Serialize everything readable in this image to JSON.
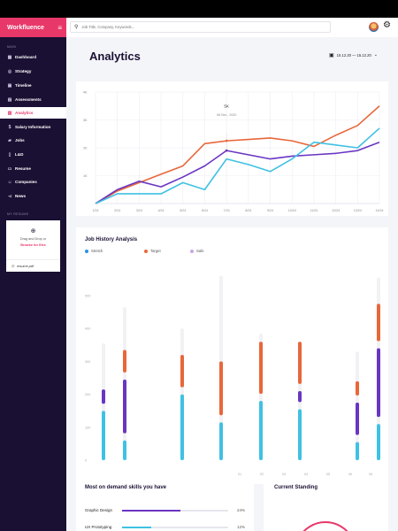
{
  "brand": {
    "name": "Workfluence",
    "menu_icon": "hamburger-icon"
  },
  "sidebar": {
    "section_main": "MAIN",
    "items": [
      {
        "label": "Dashboard",
        "icon": "grid-icon",
        "active": false
      },
      {
        "label": "Strategy",
        "icon": "target-icon",
        "active": false
      },
      {
        "label": "Timeline",
        "icon": "calendar-icon",
        "active": false
      },
      {
        "label": "Assessments",
        "icon": "clipboard-icon",
        "active": false
      },
      {
        "label": "Analytics",
        "icon": "chart-icon",
        "active": true
      },
      {
        "label": "Salary Information",
        "icon": "dollar-icon",
        "active": false
      },
      {
        "label": "Jobs",
        "icon": "briefcase-icon",
        "active": false
      },
      {
        "label": "L&D",
        "icon": "book-icon",
        "active": false
      },
      {
        "label": "Resume",
        "icon": "folder-icon",
        "active": false
      },
      {
        "label": "Companies",
        "icon": "people-icon",
        "active": false
      },
      {
        "label": "News",
        "icon": "megaphone-icon",
        "active": false
      }
    ],
    "section_resume": "MY RESUME",
    "resume": {
      "line1": "Drag and Drop or",
      "line2": "Browse for files",
      "file": "resume.pdf"
    }
  },
  "topbar": {
    "search_placeholder": "Job Title, Company, Keywords..."
  },
  "page": {
    "title": "Analytics",
    "date_range": "15.12.20 — 15.12.20"
  },
  "line_chart": {
    "y_ticks": [
      "4K",
      "3K",
      "2K",
      "1K"
    ],
    "x_ticks": [
      "1/24",
      "2/24",
      "3/24",
      "4/24",
      "5/24",
      "6/24",
      "7/24",
      "8/24",
      "9/24",
      "10/24",
      "11/24",
      "12/24",
      "13/24",
      "14/24"
    ],
    "tooltip": {
      "value": "5K",
      "date": "08 Dec , 2020"
    },
    "series": [
      {
        "color": "#e8673a",
        "values": [
          0.0,
          0.45,
          0.75,
          1.05,
          1.35,
          2.15,
          2.25,
          2.3,
          2.35,
          2.25,
          2.05,
          2.45,
          2.8,
          3.5
        ]
      },
      {
        "color": "#6a35c2",
        "values": [
          0.0,
          0.5,
          0.8,
          0.6,
          0.95,
          1.35,
          1.9,
          1.75,
          1.6,
          1.7,
          1.75,
          1.8,
          1.9,
          2.2
        ]
      },
      {
        "color": "#3fc1e3",
        "values": [
          0.0,
          0.35,
          0.35,
          0.35,
          0.75,
          0.5,
          1.6,
          1.4,
          1.15,
          1.6,
          2.2,
          2.1,
          2.0,
          2.7
        ]
      }
    ],
    "ylim": [
      0,
      4
    ]
  },
  "job_history": {
    "title": "Job History Analysis",
    "legend": [
      {
        "label": "Stretch",
        "color": "#2b8fe8"
      },
      {
        "label": "Target",
        "color": "#e8673a"
      },
      {
        "label": "Safe",
        "color": "#c9a6e4"
      }
    ],
    "y_ticks": [
      "500",
      "400",
      "300",
      "200",
      "100",
      "0"
    ],
    "x_ticks": [
      "01",
      "02",
      "03",
      "04",
      "05",
      "06",
      "06"
    ]
  },
  "chart_data": {
    "type": "bar",
    "series_stack": [
      "cyan",
      "purple",
      "orange"
    ],
    "groups": [
      {
        "cyan": 150,
        "purple": 65,
        "orange": 0,
        "bg": 355
      },
      {
        "cyan": 60,
        "purple": 185,
        "orange": 90,
        "bg": 465
      },
      {
        "cyan": 0,
        "purple": 0,
        "orange": 0,
        "bg": 0
      },
      {
        "cyan": 200,
        "purple": 0,
        "orange": 120,
        "bg": 400
      },
      {
        "cyan": 115,
        "purple": 0,
        "orange": 185,
        "bg": 560
      },
      {
        "cyan": 0,
        "purple": 0,
        "orange": 0,
        "bg": 0
      },
      {
        "cyan": 180,
        "purple": 0,
        "orange": 180,
        "bg": 385
      },
      {
        "cyan": 155,
        "purple": 55,
        "orange": 150,
        "bg": 355
      },
      {
        "cyan": 0,
        "purple": 0,
        "orange": 0,
        "bg": 0
      },
      {
        "cyan": 55,
        "purple": 120,
        "orange": 65,
        "bg": 330
      },
      {
        "cyan": 110,
        "purple": 230,
        "orange": 135,
        "bg": 555
      }
    ],
    "ylim": [
      0,
      500
    ]
  },
  "skills": {
    "title": "Most on demand skills you have",
    "items": [
      {
        "label": "Graphic Design",
        "value": 24,
        "pct": "24%",
        "color": "#6a35c2"
      },
      {
        "label": "UX Prototyping",
        "value": 12,
        "pct": "12%",
        "color": "#3fc1e3"
      }
    ]
  },
  "standing": {
    "title": "Current Standing"
  }
}
